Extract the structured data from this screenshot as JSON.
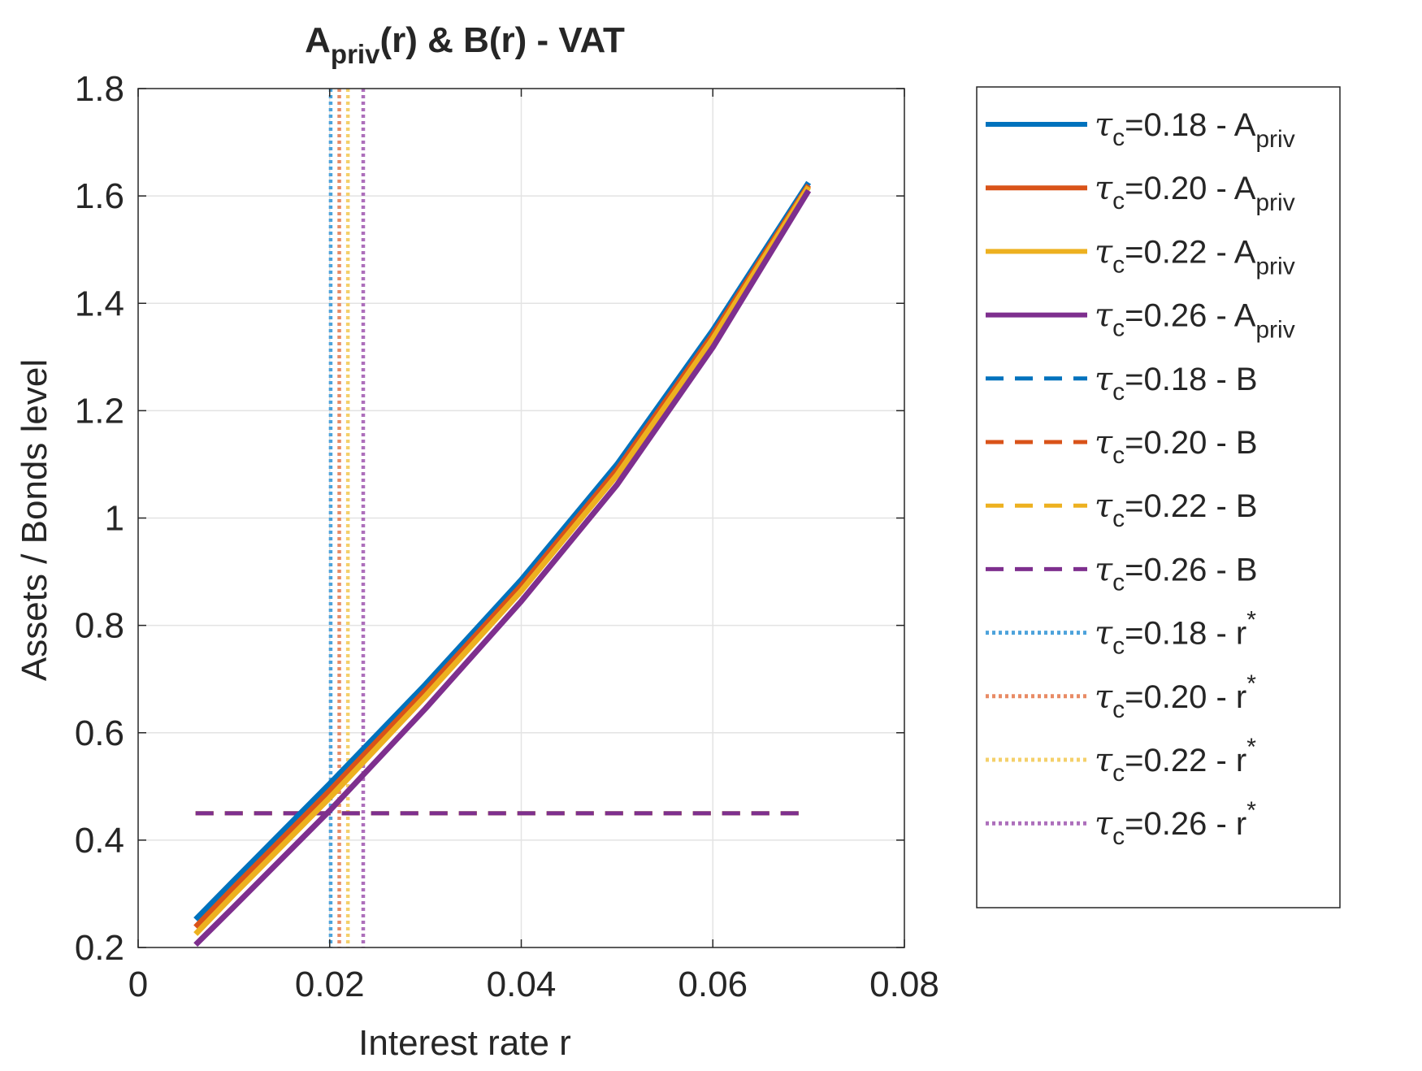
{
  "chart_data": {
    "type": "line",
    "title": {
      "main": "A",
      "sub": "priv",
      "rest": "(r) & B(r) - VAT"
    },
    "xlabel": "Interest rate r",
    "ylabel": "Assets / Bonds level",
    "xlim": [
      0,
      0.08
    ],
    "ylim": [
      0.2,
      1.8
    ],
    "xticks": [
      0,
      0.02,
      0.04,
      0.06,
      0.08
    ],
    "xtick_labels": [
      "0",
      "0.02",
      "0.04",
      "0.06",
      "0.08"
    ],
    "yticks": [
      0.2,
      0.4,
      0.6,
      0.8,
      1.0,
      1.2,
      1.4,
      1.6,
      1.8
    ],
    "ytick_labels": [
      "0.2",
      "0.4",
      "0.6",
      "0.8",
      "1",
      "1.2",
      "1.4",
      "1.6",
      "1.8"
    ],
    "grid": true,
    "legend_position": "outside-right",
    "colors": {
      "blue": "#0072BD",
      "orange": "#D95319",
      "yellow": "#EDB120",
      "purple": "#7E2F8E",
      "blue_light": "#4DA3DB",
      "orange_light": "#E88B65",
      "yellow_light": "#F4D06A",
      "purple_light": "#AD6FBB"
    },
    "a_priv_series": [
      {
        "name": "=0.18 - A",
        "tau": "0.18",
        "color": "#0072BD",
        "x": [
          0.006,
          0.01,
          0.02,
          0.03,
          0.04,
          0.05,
          0.06,
          0.07
        ],
        "y": [
          0.252,
          0.325,
          0.505,
          0.69,
          0.885,
          1.1,
          1.35,
          1.625
        ]
      },
      {
        "name": "=0.20 - A",
        "tau": "0.20",
        "color": "#D95319",
        "x": [
          0.006,
          0.01,
          0.02,
          0.03,
          0.04,
          0.05,
          0.06,
          0.07
        ],
        "y": [
          0.238,
          0.312,
          0.492,
          0.679,
          0.874,
          1.09,
          1.342,
          1.62
        ]
      },
      {
        "name": "=0.22 - A",
        "tau": "0.22",
        "color": "#EDB120",
        "x": [
          0.006,
          0.01,
          0.02,
          0.03,
          0.04,
          0.05,
          0.06,
          0.07
        ],
        "y": [
          0.225,
          0.299,
          0.479,
          0.668,
          0.864,
          1.08,
          1.334,
          1.617
        ]
      },
      {
        "name": "=0.26 - A",
        "tau": "0.26",
        "color": "#7E2F8E",
        "x": [
          0.006,
          0.01,
          0.02,
          0.03,
          0.04,
          0.05,
          0.06,
          0.07
        ],
        "y": [
          0.205,
          0.276,
          0.455,
          0.645,
          0.845,
          1.062,
          1.318,
          1.61
        ]
      }
    ],
    "b_series": [
      {
        "name": "=0.18 - B",
        "tau": "0.18",
        "color": "#0072BD",
        "x": [
          0.006,
          0.07
        ],
        "y": [
          0.45,
          0.45
        ]
      },
      {
        "name": "=0.20 - B",
        "tau": "0.20",
        "color": "#D95319",
        "x": [
          0.006,
          0.07
        ],
        "y": [
          0.45,
          0.45
        ]
      },
      {
        "name": "=0.22 - B",
        "tau": "0.22",
        "color": "#EDB120",
        "x": [
          0.006,
          0.07
        ],
        "y": [
          0.45,
          0.45
        ]
      },
      {
        "name": "=0.26 - B",
        "tau": "0.26",
        "color": "#7E2F8E",
        "x": [
          0.006,
          0.07
        ],
        "y": [
          0.45,
          0.45
        ]
      }
    ],
    "r_star_series": [
      {
        "name": "=0.18 - r",
        "tau": "0.18",
        "color": "#4DA3DB",
        "r": 0.0201
      },
      {
        "name": "=0.20 - r",
        "tau": "0.20",
        "color": "#E88B65",
        "r": 0.021
      },
      {
        "name": "=0.22 - r",
        "tau": "0.22",
        "color": "#F4D06A",
        "r": 0.0219
      },
      {
        "name": "=0.26 - r",
        "tau": "0.26",
        "color": "#AD6FBB",
        "r": 0.0235
      }
    ],
    "legend": {
      "tau_symbol": "τ",
      "tau_sub": "c",
      "a_sub": "priv",
      "r_sup": "*"
    }
  }
}
